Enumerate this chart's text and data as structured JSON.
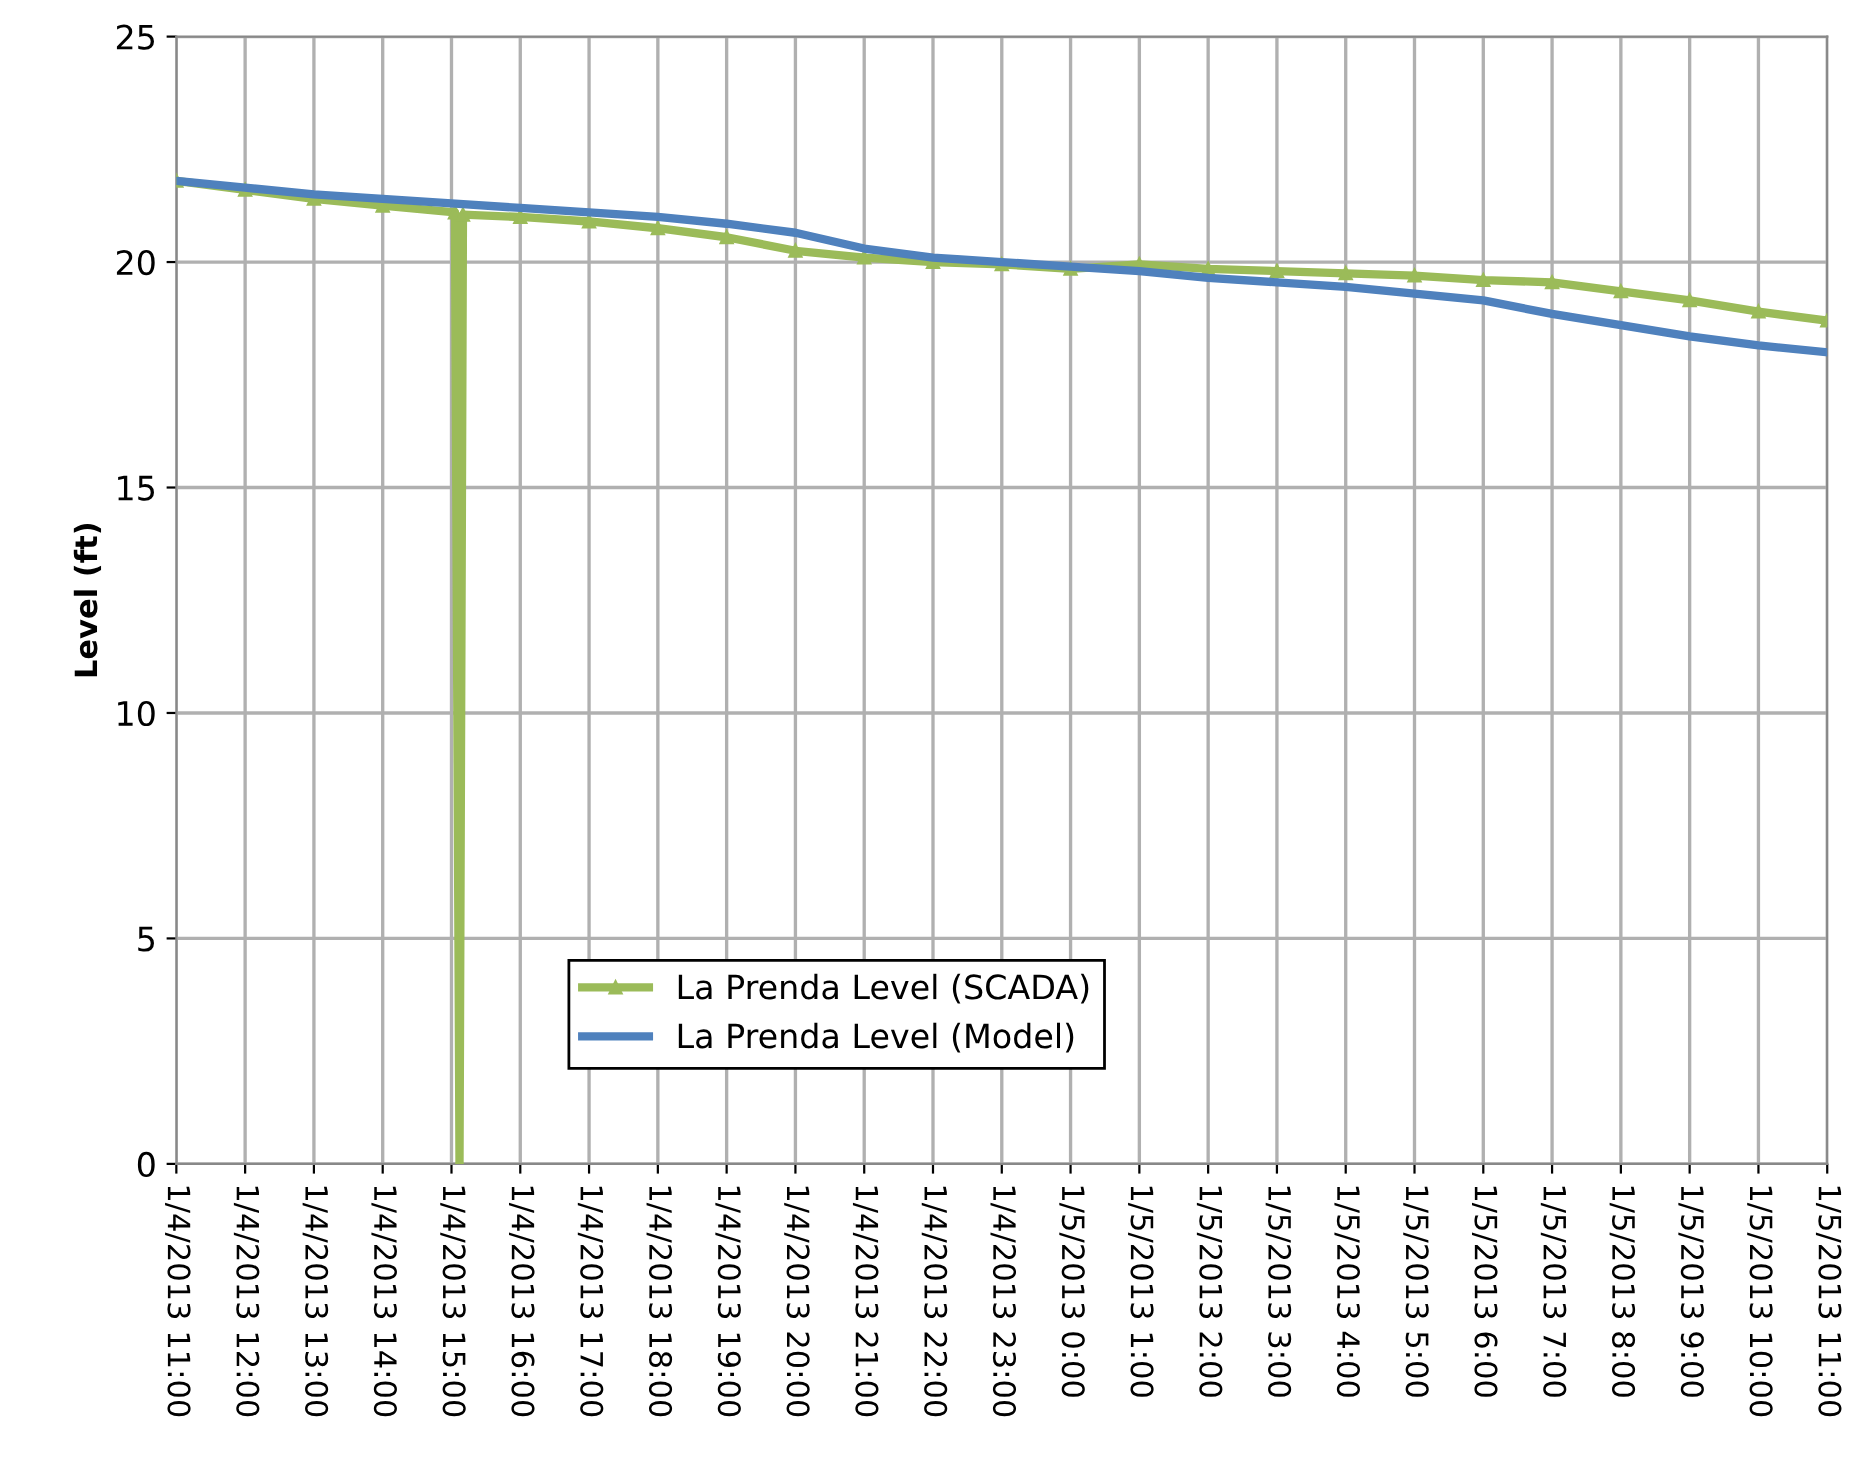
{
  "chart_data": {
    "type": "line",
    "ylabel": "Level (ft)",
    "xlim": [
      "2013-01-04T11:00",
      "2013-01-05T11:00"
    ],
    "ylim": [
      0,
      25
    ],
    "yticks": [
      0,
      5,
      10,
      15,
      20,
      25
    ],
    "xticks": [
      {
        "value": "2013-01-04T11:00",
        "label": "1/4/2013 11:00"
      },
      {
        "value": "2013-01-04T12:00",
        "label": "1/4/2013 12:00"
      },
      {
        "value": "2013-01-04T13:00",
        "label": "1/4/2013 13:00"
      },
      {
        "value": "2013-01-04T14:00",
        "label": "1/4/2013 14:00"
      },
      {
        "value": "2013-01-04T15:00",
        "label": "1/4/2013 15:00"
      },
      {
        "value": "2013-01-04T16:00",
        "label": "1/4/2013 16:00"
      },
      {
        "value": "2013-01-04T17:00",
        "label": "1/4/2013 17:00"
      },
      {
        "value": "2013-01-04T18:00",
        "label": "1/4/2013 18:00"
      },
      {
        "value": "2013-01-04T19:00",
        "label": "1/4/2013 19:00"
      },
      {
        "value": "2013-01-04T20:00",
        "label": "1/4/2013 20:00"
      },
      {
        "value": "2013-01-04T21:00",
        "label": "1/4/2013 21:00"
      },
      {
        "value": "2013-01-04T22:00",
        "label": "1/4/2013 22:00"
      },
      {
        "value": "2013-01-04T23:00",
        "label": "1/4/2013 23:00"
      },
      {
        "value": "2013-01-05T00:00",
        "label": "1/5/2013 0:00"
      },
      {
        "value": "2013-01-05T01:00",
        "label": "1/5/2013 1:00"
      },
      {
        "value": "2013-01-05T02:00",
        "label": "1/5/2013 2:00"
      },
      {
        "value": "2013-01-05T03:00",
        "label": "1/5/2013 3:00"
      },
      {
        "value": "2013-01-05T04:00",
        "label": "1/5/2013 4:00"
      },
      {
        "value": "2013-01-05T05:00",
        "label": "1/5/2013 5:00"
      },
      {
        "value": "2013-01-05T06:00",
        "label": "1/5/2013 6:00"
      },
      {
        "value": "2013-01-05T07:00",
        "label": "1/5/2013 7:00"
      },
      {
        "value": "2013-01-05T08:00",
        "label": "1/5/2013 8:00"
      },
      {
        "value": "2013-01-05T09:00",
        "label": "1/5/2013 9:00"
      },
      {
        "value": "2013-01-05T10:00",
        "label": "1/5/2013 10:00"
      },
      {
        "value": "2013-01-05T11:00",
        "label": "1/5/2013 11:00"
      }
    ],
    "grid": true,
    "legend": "bottom",
    "series": [
      {
        "name": "La Prenda Level (SCADA)",
        "color": "#9bbb59",
        "marker": "triangle",
        "x": [
          "2013-01-04T11:00",
          "2013-01-04T12:00",
          "2013-01-04T13:00",
          "2013-01-04T14:00",
          "2013-01-04T15:03",
          "2013-01-04T15:07",
          "2013-01-04T15:10",
          "2013-01-04T16:00",
          "2013-01-04T17:00",
          "2013-01-04T18:00",
          "2013-01-04T19:00",
          "2013-01-04T20:00",
          "2013-01-04T21:00",
          "2013-01-04T22:00",
          "2013-01-04T23:00",
          "2013-01-05T00:00",
          "2013-01-05T01:00",
          "2013-01-05T02:00",
          "2013-01-05T03:00",
          "2013-01-05T04:00",
          "2013-01-05T05:00",
          "2013-01-05T06:00",
          "2013-01-05T07:00",
          "2013-01-05T08:00",
          "2013-01-05T09:00",
          "2013-01-05T10:00",
          "2013-01-05T11:00"
        ],
        "values": [
          21.8,
          21.6,
          21.4,
          21.25,
          21.1,
          0,
          21.05,
          21.0,
          20.9,
          20.75,
          20.55,
          20.25,
          20.1,
          20.0,
          19.95,
          19.85,
          19.95,
          19.85,
          19.8,
          19.75,
          19.7,
          19.6,
          19.55,
          19.35,
          19.15,
          18.9,
          18.7
        ]
      },
      {
        "name": "La Prenda Level (Model)",
        "color": "#4f81bd",
        "marker": "none",
        "x": [
          "2013-01-04T11:00",
          "2013-01-04T12:00",
          "2013-01-04T13:00",
          "2013-01-04T14:00",
          "2013-01-04T15:00",
          "2013-01-04T16:00",
          "2013-01-04T17:00",
          "2013-01-04T18:00",
          "2013-01-04T19:00",
          "2013-01-04T20:00",
          "2013-01-04T21:00",
          "2013-01-04T22:00",
          "2013-01-04T23:00",
          "2013-01-05T00:00",
          "2013-01-05T01:00",
          "2013-01-05T02:00",
          "2013-01-05T03:00",
          "2013-01-05T04:00",
          "2013-01-05T05:00",
          "2013-01-05T06:00",
          "2013-01-05T07:00",
          "2013-01-05T08:00",
          "2013-01-05T09:00",
          "2013-01-05T10:00",
          "2013-01-05T11:00"
        ],
        "values": [
          21.8,
          21.65,
          21.5,
          21.4,
          21.3,
          21.2,
          21.1,
          21.0,
          20.85,
          20.65,
          20.3,
          20.1,
          20.0,
          19.9,
          19.8,
          19.65,
          19.55,
          19.45,
          19.3,
          19.15,
          18.85,
          18.6,
          18.35,
          18.15,
          18.0
        ]
      }
    ]
  }
}
